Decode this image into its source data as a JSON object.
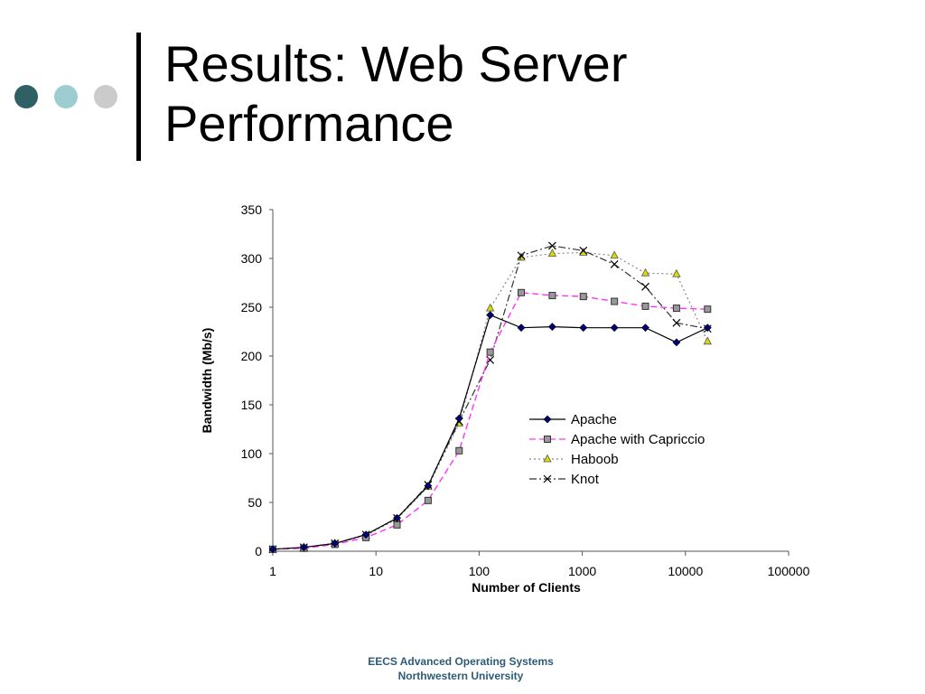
{
  "slide": {
    "title_line1": "Results: Web Server",
    "title_line2": "Performance",
    "footer_line1": "EECS Advanced Operating Systems",
    "footer_line2": "Northwestern University",
    "dot_colors": [
      "#2f6066",
      "#9ccdd0",
      "#cbcbcb"
    ],
    "footer_color": "#2c5b78"
  },
  "chart_data": {
    "type": "line",
    "xlabel": "Number of Clients",
    "ylabel": "Bandwidth (Mb/s)",
    "xscale": "log",
    "xlim": [
      1,
      100000
    ],
    "ylim": [
      0,
      350
    ],
    "xticks": [
      1,
      10,
      100,
      1000,
      10000,
      100000
    ],
    "xtick_labels": [
      "1",
      "10",
      "100",
      "1000",
      "10000",
      "100000"
    ],
    "yticks": [
      0,
      50,
      100,
      150,
      200,
      250,
      300,
      350
    ],
    "ytick_labels": [
      "0",
      "50",
      "100",
      "150",
      "200",
      "250",
      "300",
      "350"
    ],
    "grid": false,
    "legend_position": "center-right",
    "series": [
      {
        "name": "Apache",
        "color": "#000000",
        "marker": "diamond",
        "marker_color": "#00007a",
        "dash": "solid",
        "x": [
          1,
          2,
          4,
          8,
          16,
          32,
          64,
          128,
          256,
          512,
          1024,
          2048,
          4096,
          8192,
          16384
        ],
        "y": [
          2,
          4,
          8,
          17,
          34,
          67,
          136,
          242,
          229,
          230,
          229,
          229,
          229,
          214,
          229
        ]
      },
      {
        "name": "Apache with Capriccio",
        "color": "#ff33ff",
        "marker": "square",
        "marker_color": "#999999",
        "dash": "dashed",
        "x": [
          1,
          2,
          4,
          8,
          16,
          32,
          64,
          128,
          256,
          512,
          1024,
          2048,
          4096,
          8192,
          16384
        ],
        "y": [
          2,
          3,
          7,
          14,
          27,
          52,
          103,
          204,
          265,
          262,
          261,
          256,
          251,
          249,
          248
        ]
      },
      {
        "name": "Haboob",
        "color": "#888888",
        "marker": "triangle",
        "marker_color": "#dddd00",
        "dash": "dotted",
        "x": [
          1,
          2,
          4,
          8,
          16,
          32,
          64,
          128,
          256,
          512,
          1024,
          2048,
          4096,
          8192,
          16384
        ],
        "y": [
          2,
          4,
          8,
          16,
          33,
          66,
          131,
          249,
          301,
          305,
          306,
          303,
          285,
          284,
          215
        ]
      },
      {
        "name": "Knot",
        "color": "#333333",
        "marker": "x",
        "marker_color": "#000000",
        "dash": "dashdot",
        "x": [
          1,
          2,
          4,
          8,
          16,
          32,
          64,
          128,
          256,
          512,
          1024,
          2048,
          4096,
          8192,
          16384
        ],
        "y": [
          2,
          4,
          8,
          17,
          34,
          68,
          133,
          196,
          303,
          313,
          308,
          294,
          271,
          234,
          228
        ]
      }
    ]
  }
}
